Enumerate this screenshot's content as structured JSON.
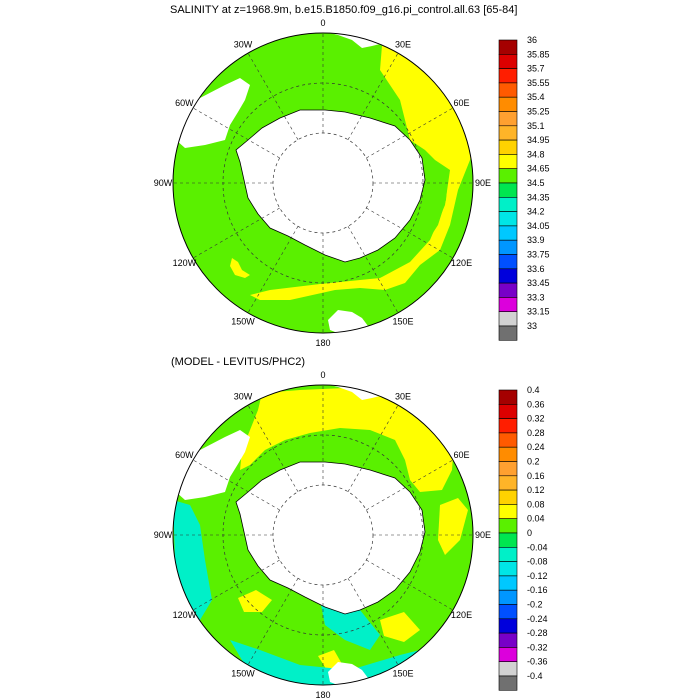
{
  "panels": [
    {
      "title": "SALINITY at z=1968.9m, b.e15.B1850.f09_g16.pi_control.all.63 [65-84]",
      "lon_labels": [
        "0",
        "30E",
        "60E",
        "90E",
        "120E",
        "150E",
        "180",
        "150W",
        "120W",
        "90W",
        "60W",
        "30W"
      ],
      "colorbar": {
        "levels": [
          "36",
          "35.85",
          "35.7",
          "35.55",
          "35.4",
          "35.25",
          "35.1",
          "34.95",
          "34.8",
          "34.65",
          "34.5",
          "34.35",
          "34.2",
          "34.05",
          "33.9",
          "33.75",
          "33.6",
          "33.45",
          "33.3",
          "33.15",
          "33"
        ],
        "colors": [
          "#a50000",
          "#dc0000",
          "#ff1e00",
          "#ff5a00",
          "#ff8c00",
          "#ffa030",
          "#ffb428",
          "#ffd200",
          "#ffff00",
          "#5af000",
          "#00e650",
          "#00f0c8",
          "#00e6e6",
          "#00c8ff",
          "#0096ff",
          "#0050ff",
          "#0000dc",
          "#7800c8",
          "#dc00dc",
          "#d2d2d2",
          "#707070"
        ]
      }
    },
    {
      "title": "(MODEL - LEVITUS/PHC2)",
      "lon_labels": [
        "0",
        "30E",
        "60E",
        "90E",
        "120E",
        "150E",
        "180",
        "150W",
        "120W",
        "90W",
        "60W",
        "30W"
      ],
      "colorbar": {
        "levels": [
          "0.4",
          "0.36",
          "0.32",
          "0.28",
          "0.24",
          "0.2",
          "0.16",
          "0.12",
          "0.08",
          "0.04",
          "0",
          "-0.04",
          "-0.08",
          "-0.12",
          "-0.16",
          "-0.2",
          "-0.24",
          "-0.28",
          "-0.32",
          "-0.36",
          "-0.4"
        ],
        "colors": [
          "#a50000",
          "#dc0000",
          "#ff1e00",
          "#ff5a00",
          "#ff8c00",
          "#ffa030",
          "#ffb428",
          "#ffd200",
          "#ffff00",
          "#5af000",
          "#00e650",
          "#00f0c8",
          "#00e6e6",
          "#00c8ff",
          "#0096ff",
          "#0050ff",
          "#0000dc",
          "#7800c8",
          "#dc00dc",
          "#d2d2d2",
          "#707070"
        ]
      }
    }
  ],
  "colors": {
    "field_main": "#5af000",
    "field_high": "#ffff00",
    "field_low": "#00f0c8",
    "land": "#ffffff",
    "stroke": "#000000"
  }
}
